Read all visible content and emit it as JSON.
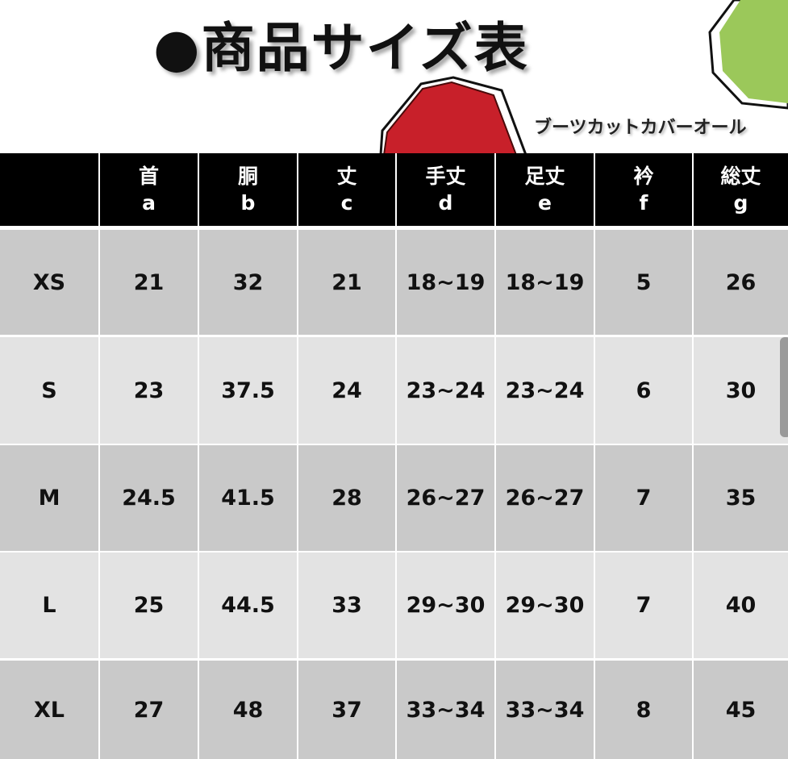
{
  "title": "●商品サイズ表",
  "subtitle": "ブーツカットカバーオール",
  "colors": {
    "header_bg": "#000000",
    "row_dark": "#c9c9c9",
    "row_light": "#e3e3e3",
    "red_shape": "#c8202a",
    "green_shape": "#9bc85a"
  },
  "table": {
    "headers": [
      {
        "jp": "",
        "letter": ""
      },
      {
        "jp": "首",
        "letter": "a"
      },
      {
        "jp": "胴",
        "letter": "b"
      },
      {
        "jp": "丈",
        "letter": "c"
      },
      {
        "jp": "手丈",
        "letter": "d"
      },
      {
        "jp": "足丈",
        "letter": "e"
      },
      {
        "jp": "衿",
        "letter": "f"
      },
      {
        "jp": "総丈",
        "letter": "g"
      }
    ],
    "rows": [
      [
        "XS",
        "21",
        "32",
        "21",
        "18~19",
        "18~19",
        "5",
        "26"
      ],
      [
        "S",
        "23",
        "37.5",
        "24",
        "23~24",
        "23~24",
        "6",
        "30"
      ],
      [
        "M",
        "24.5",
        "41.5",
        "28",
        "26~27",
        "26~27",
        "7",
        "35"
      ],
      [
        "L",
        "25",
        "44.5",
        "33",
        "29~30",
        "29~30",
        "7",
        "40"
      ],
      [
        "XL",
        "27",
        "48",
        "37",
        "33~34",
        "33~34",
        "8",
        "45"
      ]
    ]
  }
}
